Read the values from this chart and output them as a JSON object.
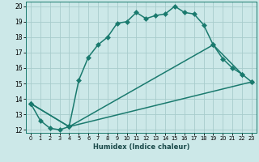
{
  "xlabel": "Humidex (Indice chaleur)",
  "bg_color": "#cce8e8",
  "grid_color": "#a8cccc",
  "line_color": "#1a7a6e",
  "xlim": [
    -0.5,
    23.5
  ],
  "ylim": [
    11.8,
    20.3
  ],
  "xticks": [
    0,
    1,
    2,
    3,
    4,
    5,
    6,
    7,
    8,
    9,
    10,
    11,
    12,
    13,
    14,
    15,
    16,
    17,
    18,
    19,
    20,
    21,
    22,
    23
  ],
  "yticks": [
    12,
    13,
    14,
    15,
    16,
    17,
    18,
    19,
    20
  ],
  "line1_x": [
    0,
    1,
    2,
    3,
    4,
    5,
    6,
    7,
    8,
    9,
    10,
    11,
    12,
    13,
    14,
    15,
    16,
    17,
    18,
    19,
    20,
    21,
    22
  ],
  "line1_y": [
    13.7,
    12.6,
    12.1,
    12.0,
    12.2,
    15.2,
    16.7,
    17.5,
    18.0,
    18.9,
    19.0,
    19.6,
    19.2,
    19.4,
    19.5,
    20.0,
    19.6,
    19.5,
    18.8,
    17.5,
    16.6,
    16.0,
    15.6
  ],
  "line2_x": [
    0,
    4,
    19,
    22,
    23
  ],
  "line2_y": [
    13.7,
    12.2,
    17.5,
    15.6,
    15.1
  ],
  "line3_x": [
    0,
    4,
    23
  ],
  "line3_y": [
    13.7,
    12.2,
    15.1
  ],
  "marker_size": 3.5,
  "line_width": 1.1
}
